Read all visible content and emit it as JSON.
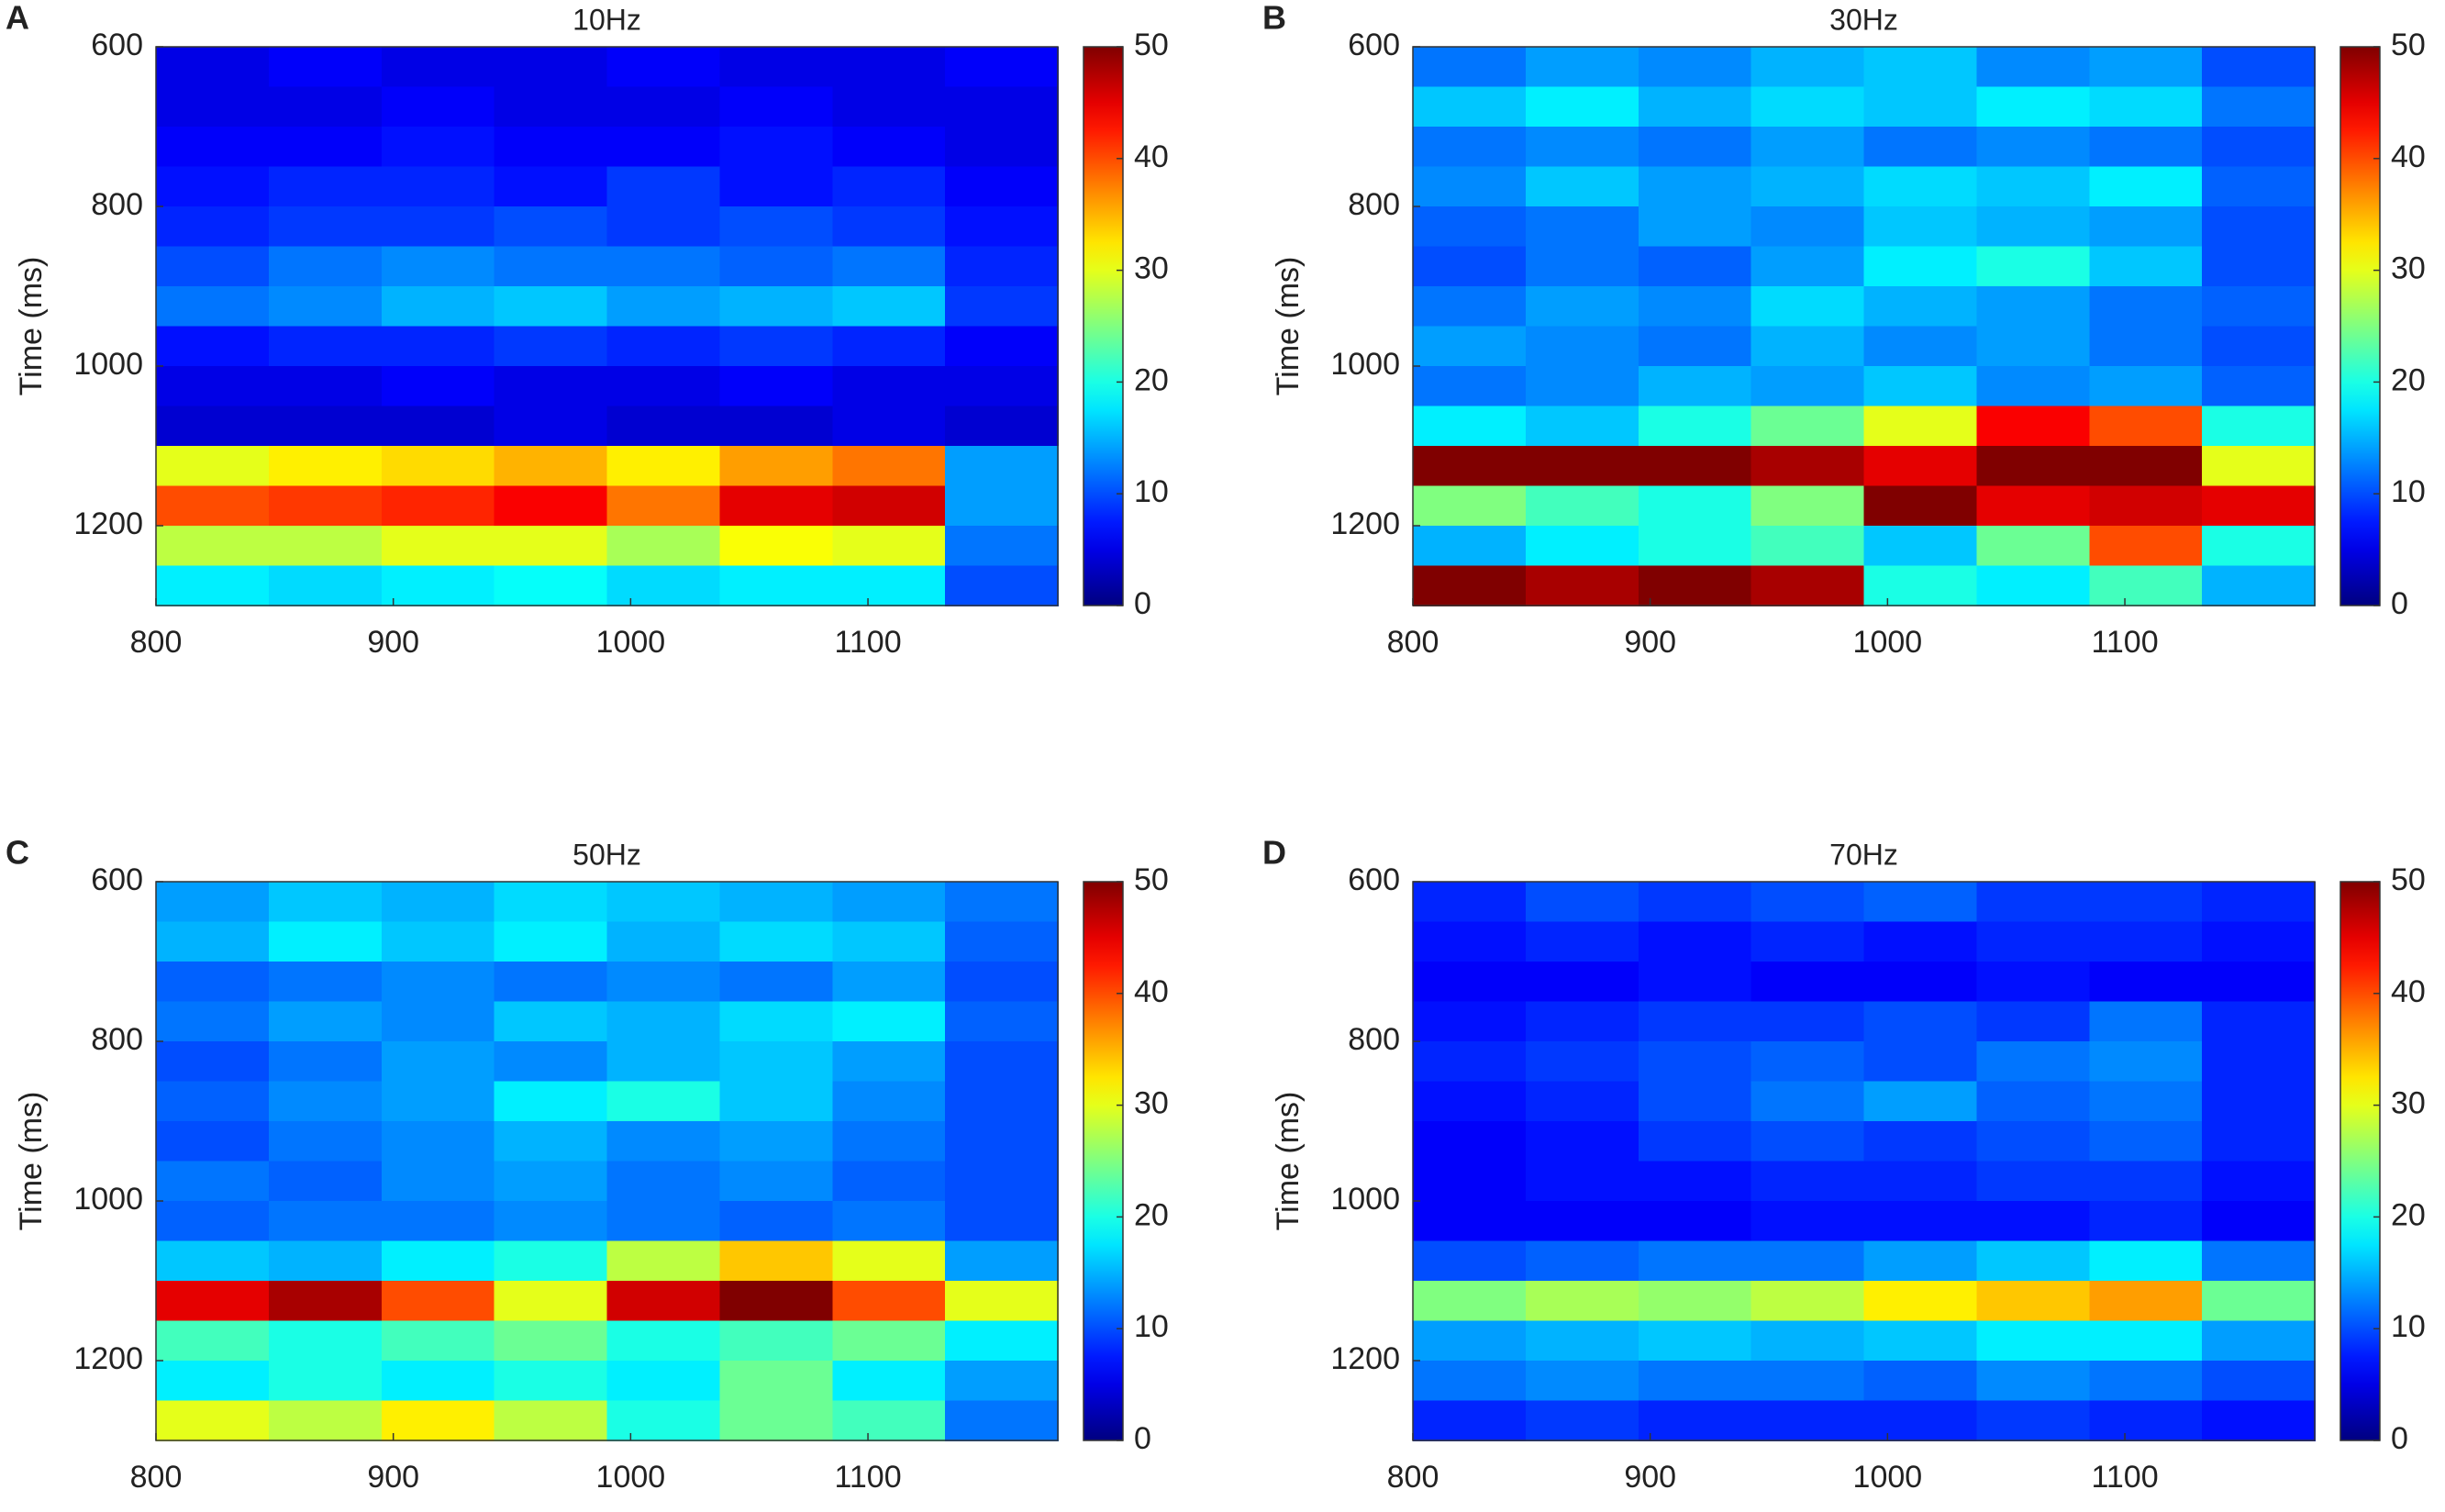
{
  "chart_data": [
    {
      "type": "heatmap",
      "panel_label": "A",
      "title": "10Hz",
      "y_label": "Time (ms)",
      "colormap": "jet",
      "x": [
        823.75,
        871.25,
        918.75,
        966.25,
        1013.75,
        1061.25,
        1108.75,
        1156.25
      ],
      "y": [
        625,
        675,
        725,
        775,
        825,
        875,
        925,
        975,
        1025,
        1075,
        1125,
        1175,
        1225,
        1275
      ],
      "values": [
        [
          5,
          6,
          5,
          5,
          6,
          5,
          5,
          6
        ],
        [
          5,
          5,
          6,
          5,
          5,
          6,
          5,
          5
        ],
        [
          6,
          6,
          7,
          6,
          6,
          7,
          6,
          5
        ],
        [
          7,
          8,
          8,
          7,
          9,
          7,
          8,
          6
        ],
        [
          8,
          9,
          9,
          10,
          9,
          10,
          9,
          7
        ],
        [
          10,
          12,
          13,
          12,
          12,
          11,
          12,
          8
        ],
        [
          12,
          13,
          15,
          16,
          14,
          15,
          16,
          9
        ],
        [
          7,
          8,
          8,
          9,
          8,
          9,
          8,
          6
        ],
        [
          5,
          5,
          6,
          5,
          5,
          6,
          5,
          5
        ],
        [
          4,
          4,
          4,
          5,
          4,
          4,
          5,
          4
        ],
        [
          30,
          32,
          33,
          35,
          32,
          36,
          38,
          14
        ],
        [
          40,
          41,
          42,
          44,
          38,
          45,
          46,
          14
        ],
        [
          28,
          28,
          30,
          30,
          27,
          31,
          30,
          12
        ],
        [
          18,
          17,
          18,
          19,
          17,
          18,
          18,
          10
        ]
      ],
      "xlim": [
        800,
        1180
      ],
      "ylim": [
        600,
        1300
      ],
      "xticks": [
        800,
        900,
        1000,
        1100
      ],
      "yticks": [
        600,
        800,
        1000,
        1200
      ],
      "clim": [
        0,
        50
      ],
      "cticks": [
        0,
        10,
        20,
        30,
        40,
        50
      ]
    },
    {
      "type": "heatmap",
      "panel_label": "B",
      "title": "30Hz",
      "y_label": "Time (ms)",
      "colormap": "jet",
      "x": [
        823.75,
        871.25,
        918.75,
        966.25,
        1013.75,
        1061.25,
        1108.75,
        1156.25
      ],
      "y": [
        625,
        675,
        725,
        775,
        825,
        875,
        925,
        975,
        1025,
        1075,
        1125,
        1175,
        1225,
        1275
      ],
      "values": [
        [
          12,
          14,
          13,
          15,
          16,
          13,
          14,
          10
        ],
        [
          16,
          18,
          15,
          17,
          16,
          18,
          17,
          12
        ],
        [
          12,
          13,
          12,
          14,
          12,
          13,
          12,
          10
        ],
        [
          13,
          16,
          14,
          15,
          17,
          16,
          18,
          11
        ],
        [
          11,
          12,
          14,
          13,
          16,
          15,
          14,
          10
        ],
        [
          10,
          12,
          11,
          14,
          18,
          20,
          16,
          10
        ],
        [
          12,
          14,
          13,
          17,
          15,
          14,
          12,
          11
        ],
        [
          14,
          13,
          12,
          15,
          13,
          14,
          12,
          10
        ],
        [
          12,
          13,
          15,
          14,
          16,
          13,
          14,
          11
        ],
        [
          18,
          16,
          20,
          24,
          30,
          44,
          40,
          20
        ],
        [
          55,
          55,
          52,
          48,
          45,
          55,
          50,
          30
        ],
        [
          25,
          22,
          20,
          25,
          50,
          45,
          46,
          45
        ],
        [
          15,
          18,
          20,
          22,
          16,
          24,
          40,
          20
        ],
        [
          50,
          48,
          50,
          48,
          20,
          18,
          22,
          15
        ]
      ],
      "xlim": [
        800,
        1180
      ],
      "ylim": [
        600,
        1300
      ],
      "xticks": [
        800,
        900,
        1000,
        1100
      ],
      "yticks": [
        600,
        800,
        1000,
        1200
      ],
      "clim": [
        0,
        50
      ],
      "cticks": [
        0,
        10,
        20,
        30,
        40,
        50
      ]
    },
    {
      "type": "heatmap",
      "panel_label": "C",
      "title": "50Hz",
      "y_label": "Time (ms)",
      "colormap": "jet",
      "x": [
        823.75,
        871.25,
        918.75,
        966.25,
        1013.75,
        1061.25,
        1108.75,
        1156.25
      ],
      "y": [
        625,
        675,
        725,
        775,
        825,
        875,
        925,
        975,
        1025,
        1075,
        1125,
        1175,
        1225,
        1275
      ],
      "values": [
        [
          14,
          16,
          15,
          17,
          16,
          15,
          14,
          12
        ],
        [
          15,
          18,
          16,
          18,
          15,
          17,
          16,
          11
        ],
        [
          11,
          12,
          13,
          12,
          13,
          12,
          14,
          10
        ],
        [
          12,
          14,
          13,
          16,
          15,
          17,
          18,
          11
        ],
        [
          10,
          12,
          14,
          13,
          15,
          16,
          14,
          10
        ],
        [
          11,
          13,
          14,
          18,
          20,
          16,
          13,
          10
        ],
        [
          10,
          12,
          13,
          15,
          13,
          14,
          12,
          10
        ],
        [
          12,
          11,
          13,
          14,
          12,
          13,
          11,
          10
        ],
        [
          11,
          12,
          12,
          13,
          12,
          11,
          12,
          10
        ],
        [
          16,
          15,
          18,
          20,
          28,
          34,
          30,
          14
        ],
        [
          45,
          48,
          40,
          30,
          46,
          55,
          40,
          30
        ],
        [
          22,
          20,
          22,
          24,
          20,
          22,
          24,
          18
        ],
        [
          18,
          20,
          18,
          20,
          18,
          24,
          18,
          14
        ],
        [
          30,
          28,
          32,
          28,
          20,
          24,
          22,
          12
        ]
      ],
      "xlim": [
        800,
        1180
      ],
      "ylim": [
        600,
        1300
      ],
      "xticks": [
        800,
        900,
        1000,
        1100
      ],
      "yticks": [
        600,
        800,
        1000,
        1200
      ],
      "clim": [
        0,
        50
      ],
      "cticks": [
        0,
        10,
        20,
        30,
        40,
        50
      ]
    },
    {
      "type": "heatmap",
      "panel_label": "D",
      "title": "70Hz",
      "y_label": "Time (ms)",
      "colormap": "jet",
      "x": [
        823.75,
        871.25,
        918.75,
        966.25,
        1013.75,
        1061.25,
        1108.75,
        1156.25
      ],
      "y": [
        625,
        675,
        725,
        775,
        825,
        875,
        925,
        975,
        1025,
        1075,
        1125,
        1175,
        1225,
        1275
      ],
      "values": [
        [
          8,
          10,
          9,
          10,
          11,
          9,
          9,
          8
        ],
        [
          7,
          8,
          7,
          8,
          7,
          8,
          8,
          7
        ],
        [
          6,
          6,
          7,
          6,
          6,
          7,
          6,
          6
        ],
        [
          7,
          8,
          9,
          9,
          10,
          9,
          12,
          8
        ],
        [
          8,
          9,
          10,
          11,
          10,
          12,
          13,
          8
        ],
        [
          7,
          8,
          10,
          12,
          14,
          11,
          12,
          8
        ],
        [
          6,
          7,
          9,
          10,
          9,
          10,
          11,
          8
        ],
        [
          6,
          7,
          7,
          8,
          8,
          9,
          9,
          7
        ],
        [
          6,
          6,
          6,
          7,
          7,
          7,
          8,
          6
        ],
        [
          10,
          11,
          12,
          12,
          14,
          16,
          18,
          12
        ],
        [
          25,
          27,
          26,
          28,
          32,
          34,
          36,
          24
        ],
        [
          14,
          15,
          16,
          15,
          16,
          18,
          18,
          14
        ],
        [
          12,
          13,
          12,
          12,
          11,
          13,
          12,
          10
        ],
        [
          8,
          9,
          8,
          8,
          8,
          9,
          8,
          7
        ]
      ],
      "xlim": [
        800,
        1180
      ],
      "ylim": [
        600,
        1300
      ],
      "xticks": [
        800,
        900,
        1000,
        1100
      ],
      "yticks": [
        600,
        800,
        1000,
        1200
      ],
      "clim": [
        0,
        50
      ],
      "cticks": [
        0,
        10,
        20,
        30,
        40,
        50
      ]
    }
  ]
}
